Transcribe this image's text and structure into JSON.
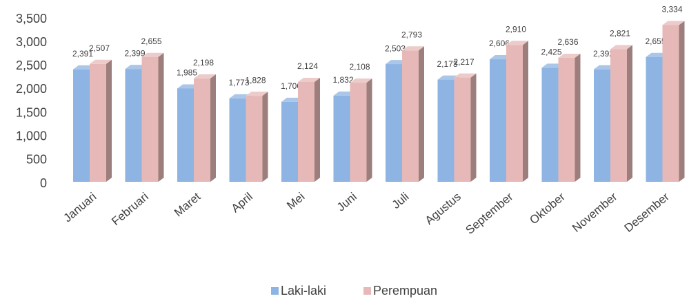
{
  "chart_data": {
    "type": "bar3d",
    "categories": [
      "Januari",
      "Februari",
      "Maret",
      "April",
      "Mei",
      "Juni",
      "Juli",
      "Agustus",
      "September",
      "Oktober",
      "November",
      "Desember"
    ],
    "series": [
      {
        "name": "Laki-laki",
        "color": "#8db4e2",
        "values": [
          2391,
          2399,
          1985,
          1773,
          1700,
          1832,
          2503,
          2173,
          2606,
          2425,
          2392,
          2655
        ],
        "value_labels": [
          "2,391",
          "2,399",
          "1,985",
          "1,773",
          "1,700",
          "1,832",
          "2,503",
          "2,173",
          "2,606",
          "2,425",
          "2,392",
          "2,655"
        ]
      },
      {
        "name": "Perempuan",
        "color": "#e6b9b8",
        "values": [
          2507,
          2655,
          2198,
          1828,
          2124,
          2108,
          2793,
          2217,
          2910,
          2636,
          2821,
          3334
        ],
        "value_labels": [
          "2,507",
          "2,655",
          "2,198",
          "1,828",
          "2,124",
          "2,108",
          "2,793",
          "2,217",
          "2,910",
          "2,636",
          "2,821",
          "3,334"
        ]
      }
    ],
    "ylim": [
      0,
      3500
    ],
    "yticks": [
      0,
      500,
      {
        "value": 1000,
        "label": "1,000"
      },
      {
        "value": 1500,
        "label": "1,500"
      },
      {
        "value": 2000,
        "label": "2,000"
      },
      {
        "value": 2500,
        "label": "2,500"
      },
      {
        "value": 3000,
        "label": "3,000"
      },
      {
        "value": 3500,
        "label": "3,500"
      }
    ],
    "legend": "bottom"
  }
}
